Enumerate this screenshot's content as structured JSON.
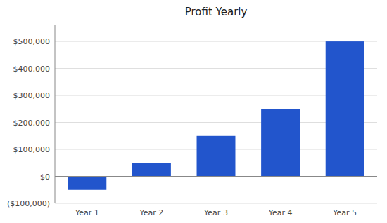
{
  "chart_data": {
    "type": "bar",
    "title": "Profit Yearly",
    "categories": [
      "Year 1",
      "Year 2",
      "Year 3",
      "Year 4",
      "Year 5"
    ],
    "values": [
      -50000,
      50000,
      150000,
      250000,
      500000
    ],
    "color": "#2255CC",
    "ylim": [
      -100000,
      560000
    ],
    "yticks": [
      {
        "value": -100000,
        "label": "($100,000)"
      },
      {
        "value": 0,
        "label": "$0"
      },
      {
        "value": 100000,
        "label": "$100,000"
      },
      {
        "value": 200000,
        "label": "$200,000"
      },
      {
        "value": 300000,
        "label": "$300,000"
      },
      {
        "value": 400000,
        "label": "$400,000"
      },
      {
        "value": 500000,
        "label": "$500,000"
      }
    ],
    "grid": true
  }
}
